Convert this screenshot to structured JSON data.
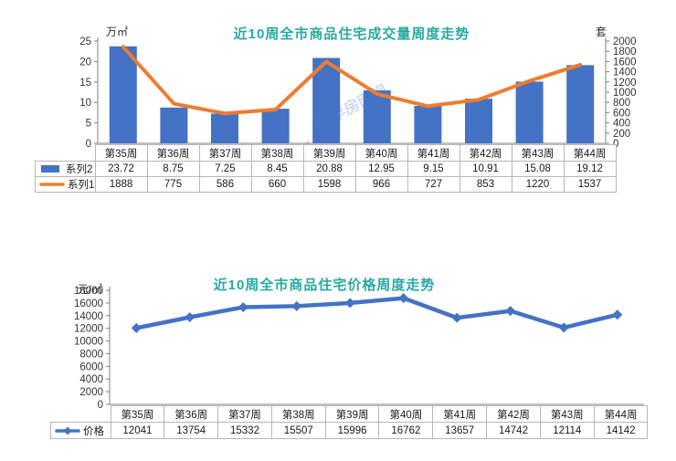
{
  "page_background": "#ffffff",
  "title_color": "#28aaa0",
  "axis_text_color": "#333333",
  "axis_line_color": "#808080",
  "table_border_color": "#b7b7b7",
  "watermark": {
    "text": "@早房网视",
    "color": "#4a7fc1"
  },
  "chart_data": [
    {
      "type": "bar",
      "combo": "bar+line dual axis",
      "title": "近10周全市商品住宅成交量周度走势",
      "categories": [
        "第35周",
        "第36周",
        "第37周",
        "第38周",
        "第39周",
        "第40周",
        "第41周",
        "第42周",
        "第43周",
        "第44周"
      ],
      "series": [
        {
          "name": "系列2",
          "type": "bar",
          "axis": "left",
          "color": "#4472c4",
          "values": [
            23.72,
            8.75,
            7.25,
            8.45,
            20.88,
            12.95,
            9.15,
            10.91,
            15.08,
            19.12
          ]
        },
        {
          "name": "系列1",
          "type": "line",
          "axis": "right",
          "color": "#ed7d31",
          "values": [
            1888,
            775,
            586,
            660,
            1598,
            966,
            727,
            853,
            1220,
            1537
          ]
        }
      ],
      "left_axis": {
        "label": "万㎡",
        "min": 0,
        "max": 25,
        "step": 5
      },
      "right_axis": {
        "label": "套",
        "min": 0,
        "max": 2000,
        "step": 200
      },
      "grid": false,
      "legend_position": "table-left"
    },
    {
      "type": "line",
      "title": "近10周全市商品住宅价格周度走势",
      "categories": [
        "第35周",
        "第36周",
        "第37周",
        "第38周",
        "第39周",
        "第40周",
        "第41周",
        "第42周",
        "第43周",
        "第44周"
      ],
      "series": [
        {
          "name": "价格",
          "type": "line",
          "axis": "left",
          "color": "#4472c4",
          "marker": "diamond",
          "values": [
            12041,
            13754,
            15332,
            15507,
            15996,
            16762,
            13657,
            14742,
            12114,
            14142
          ]
        }
      ],
      "left_axis": {
        "label": "元/㎡",
        "min": 0,
        "max": 18000,
        "step": 2000
      },
      "grid": false,
      "legend_position": "table-left"
    }
  ]
}
